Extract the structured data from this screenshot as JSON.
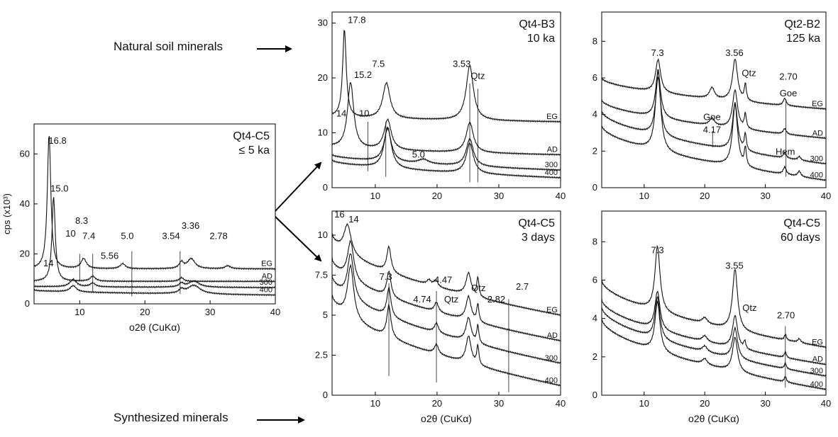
{
  "annotations": {
    "natural": "Natural soil minerals",
    "synthesized": "Synthesized minerals"
  },
  "chart_data": [
    {
      "type": "line",
      "id": "p0",
      "title": "Qt4-C5",
      "subtitle": "≤ 5 ka",
      "xlabel": "o2θ (CuKα)",
      "ylabel": "cps (x10³)",
      "xlim": [
        3,
        40
      ],
      "ylim": [
        0,
        72
      ],
      "xticks": [
        "10",
        "20",
        "30",
        "40"
      ],
      "yticks": [
        "0",
        "20",
        "40",
        "60"
      ],
      "series": [
        {
          "name": "EG",
          "base": 14,
          "end": 14,
          "peaks": [
            [
              5.3,
              54,
              0.32
            ],
            [
              10.6,
              4,
              0.5
            ],
            [
              16.6,
              2,
              0.5
            ],
            [
              25.6,
              2.5,
              0.4
            ],
            [
              27.1,
              4,
              0.7
            ],
            [
              32.7,
              1.2,
              0.5
            ]
          ]
        },
        {
          "name": "AD",
          "base": 9,
          "end": 9,
          "peaks": [
            [
              6.0,
              34,
              0.3
            ],
            [
              12.0,
              2,
              0.5
            ],
            [
              25.6,
              1.5,
              0.4
            ]
          ]
        },
        {
          "name": "300",
          "base": 7,
          "end": 6.5,
          "peaks": [
            [
              9.0,
              3,
              0.6
            ],
            [
              12.0,
              1.5,
              0.5
            ],
            [
              25.6,
              1.5,
              0.4
            ],
            [
              27.5,
              2.5,
              1.0
            ]
          ]
        },
        {
          "name": "400",
          "base": 5.5,
          "end": 3.5,
          "peaks": [
            [
              9.0,
              2.5,
              0.6
            ],
            [
              25.6,
              1.5,
              0.4
            ],
            [
              27.5,
              3.5,
              1.2
            ]
          ]
        }
      ],
      "peak_labels": [
        {
          "text": "16.8",
          "x": 6.6,
          "y": 64
        },
        {
          "text": "15.0",
          "x": 6.9,
          "y": 45
        },
        {
          "text": "14",
          "x": 5.2,
          "y": 15
        },
        {
          "text": "10",
          "x": 8.6,
          "y": 27
        },
        {
          "text": "8.3",
          "x": 10.3,
          "y": 32
        },
        {
          "text": "7.4",
          "x": 11.4,
          "y": 26
        },
        {
          "text": "5.56",
          "x": 14.6,
          "y": 18
        },
        {
          "text": "5.0",
          "x": 17.3,
          "y": 26
        },
        {
          "text": "3.54",
          "x": 24.0,
          "y": 26
        },
        {
          "text": "3.36",
          "x": 27.0,
          "y": 30
        },
        {
          "text": "2.78",
          "x": 31.3,
          "y": 26
        }
      ],
      "ref_lines": [
        {
          "x": 10.0,
          "y0": 9,
          "y1": 20
        },
        {
          "x": 12.0,
          "y0": 5,
          "y1": 20
        },
        {
          "x": 18.0,
          "y0": 3,
          "y1": 21
        },
        {
          "x": 25.4,
          "y0": 4,
          "y1": 21
        }
      ]
    },
    {
      "type": "line",
      "id": "p1",
      "title": "Qt4-B3",
      "subtitle": "10 ka",
      "xlabel": "",
      "ylabel": "",
      "xlim": [
        3,
        40
      ],
      "ylim": [
        0,
        32
      ],
      "xticks": [
        "10",
        "20",
        "30",
        "40"
      ],
      "yticks": [
        "0",
        "10",
        "20",
        "30"
      ],
      "series": [
        {
          "name": "EG",
          "base": 13,
          "end": 12,
          "peaks": [
            [
              5.0,
              16,
              0.35
            ],
            [
              11.8,
              6.5,
              0.7
            ],
            [
              25.3,
              10,
              0.7
            ]
          ]
        },
        {
          "name": "AD",
          "base": 7.5,
          "end": 6,
          "peaks": [
            [
              6.0,
              12,
              0.6
            ],
            [
              12.0,
              5.5,
              0.7
            ],
            [
              25.3,
              5.5,
              0.7
            ]
          ]
        },
        {
          "name": "300",
          "base": 6,
          "end": 3.2,
          "peaks": [
            [
              12.0,
              6,
              0.7
            ],
            [
              17.8,
              0.8,
              1.0
            ],
            [
              25.3,
              5,
              0.7
            ]
          ]
        },
        {
          "name": "400",
          "base": 5,
          "end": 1.8,
          "peaks": [
            [
              12.0,
              7.5,
              0.7
            ],
            [
              25.3,
              5.5,
              0.7
            ]
          ]
        }
      ],
      "peak_labels": [
        {
          "text": "17.8",
          "x": 7.0,
          "y": 30
        },
        {
          "text": "15.2",
          "x": 8.0,
          "y": 20
        },
        {
          "text": "7.5",
          "x": 10.5,
          "y": 22
        },
        {
          "text": "14",
          "x": 4.5,
          "y": 13
        },
        {
          "text": "10",
          "x": 8.2,
          "y": 13
        },
        {
          "text": "5.0",
          "x": 17.0,
          "y": 5.5
        },
        {
          "text": "3.53",
          "x": 24.0,
          "y": 22
        },
        {
          "text": "Qtz",
          "x": 26.6,
          "y": 19.8
        }
      ],
      "ref_lines": [
        {
          "x": 8.8,
          "y0": 3,
          "y1": 12
        },
        {
          "x": 11.7,
          "y0": 2,
          "y1": 12
        },
        {
          "x": 25.3,
          "y0": 1,
          "y1": 19
        },
        {
          "x": 26.6,
          "y0": 1,
          "y1": 18
        }
      ]
    },
    {
      "type": "line",
      "id": "p2",
      "title": "Qt2-B2",
      "subtitle": "125 ka",
      "xlabel": "",
      "ylabel": "",
      "xlim": [
        3,
        40
      ],
      "ylim": [
        0,
        9.6
      ],
      "xticks": [
        "10",
        "20",
        "30",
        "40"
      ],
      "yticks": [
        "0",
        "2",
        "4",
        "6",
        "8"
      ],
      "series": [
        {
          "name": "EG",
          "base": 6,
          "end": 4.3,
          "peaks": [
            [
              12.3,
              1.8,
              0.5
            ],
            [
              21.2,
              0.6,
              0.5
            ],
            [
              25.0,
              2.3,
              0.5
            ],
            [
              26.7,
              0.9,
              0.2
            ],
            [
              33.2,
              0.4,
              0.3
            ]
          ]
        },
        {
          "name": "AD",
          "base": 4.8,
          "end": 2.7,
          "peaks": [
            [
              12.3,
              2.5,
              0.5
            ],
            [
              21.2,
              0.4,
              0.5
            ],
            [
              25.0,
              2.1,
              0.5
            ],
            [
              26.7,
              0.8,
              0.2
            ],
            [
              33.2,
              0.3,
              0.3
            ]
          ]
        },
        {
          "name": "300",
          "base": 4.2,
          "end": 1.3,
          "peaks": [
            [
              12.3,
              3.2,
              0.5
            ],
            [
              25.0,
              2.6,
              0.5
            ],
            [
              26.7,
              0.9,
              0.2
            ],
            [
              33.2,
              0.3,
              0.3
            ],
            [
              35.6,
              0.2,
              0.3
            ]
          ]
        },
        {
          "name": "400",
          "base": 3.4,
          "end": 0.4,
          "peaks": [
            [
              12.3,
              4.5,
              0.5
            ],
            [
              25.0,
              3.4,
              0.5
            ],
            [
              26.7,
              1.0,
              0.2
            ],
            [
              33.2,
              0.4,
              0.3
            ],
            [
              35.6,
              0.3,
              0.3
            ]
          ]
        }
      ],
      "peak_labels": [
        {
          "text": "7.3",
          "x": 12.2,
          "y": 7.2
        },
        {
          "text": "3.56",
          "x": 24.9,
          "y": 7.2
        },
        {
          "text": "Qtz",
          "x": 27.3,
          "y": 6.1
        },
        {
          "text": "2.70",
          "x": 33.8,
          "y": 5.9
        },
        {
          "text": "Goe",
          "x": 33.8,
          "y": 5.0
        },
        {
          "text": "Goe",
          "x": 21.2,
          "y": 3.7
        },
        {
          "text": "4.17",
          "x": 21.2,
          "y": 3.0
        },
        {
          "text": "Hem",
          "x": 33.3,
          "y": 1.8
        }
      ],
      "ref_lines": [
        {
          "x": 21.3,
          "y0": 2.2,
          "y1": 3.1
        },
        {
          "x": 33.4,
          "y0": 0.6,
          "y1": 4.8
        }
      ]
    },
    {
      "type": "line",
      "id": "p3",
      "title": "Qt4-C5",
      "subtitle": "3 days",
      "xlabel": "o2θ (CuKα)",
      "ylabel": "",
      "xlim": [
        3,
        40
      ],
      "ylim": [
        0,
        11.5
      ],
      "xticks": [
        "10",
        "20",
        "30",
        "40"
      ],
      "yticks": [
        "0",
        "2.5",
        "5",
        "7.5",
        "10"
      ],
      "series": [
        {
          "name": "EG",
          "base": 10,
          "end": 5.0,
          "peaks": [
            [
              5.5,
              1.8,
              0.7
            ],
            [
              12.2,
              1.6,
              0.4
            ],
            [
              18.7,
              0.3,
              0.4
            ],
            [
              19.8,
              0.4,
              0.4
            ],
            [
              25.1,
              1.4,
              0.5
            ],
            [
              26.6,
              1.2,
              0.2
            ]
          ]
        },
        {
          "name": "AD",
          "base": 8.5,
          "end": 3.4,
          "peaks": [
            [
              6.0,
              2.4,
              0.6
            ],
            [
              12.2,
              1.6,
              0.4
            ],
            [
              19.9,
              0.6,
              0.4
            ],
            [
              25.1,
              1.5,
              0.5
            ],
            [
              26.6,
              1.1,
              0.2
            ]
          ]
        },
        {
          "name": "300",
          "base": 7.4,
          "end": 2.0,
          "peaks": [
            [
              6.0,
              2.8,
              0.6
            ],
            [
              12.2,
              1.8,
              0.4
            ],
            [
              19.9,
              0.6,
              0.4
            ],
            [
              25.1,
              1.5,
              0.5
            ],
            [
              26.6,
              1.1,
              0.2
            ]
          ]
        },
        {
          "name": "400",
          "base": 6.2,
          "end": 0.6,
          "peaks": [
            [
              6.0,
              3.3,
              0.6
            ],
            [
              12.2,
              2.0,
              0.4
            ],
            [
              19.9,
              0.6,
              0.4
            ],
            [
              25.1,
              1.7,
              0.5
            ],
            [
              26.6,
              1.2,
              0.2
            ]
          ]
        }
      ],
      "peak_labels": [
        {
          "text": "16",
          "x": 4.2,
          "y": 11.1
        },
        {
          "text": "14",
          "x": 6.5,
          "y": 10.8
        },
        {
          "text": "7.3",
          "x": 11.7,
          "y": 7.2
        },
        {
          "text": "4.74",
          "x": 17.6,
          "y": 5.8
        },
        {
          "text": "4.47",
          "x": 21.0,
          "y": 7.0
        },
        {
          "text": "Qtz",
          "x": 22.3,
          "y": 5.8
        },
        {
          "text": "Qtz",
          "x": 26.7,
          "y": 6.5
        },
        {
          "text": "2.82",
          "x": 29.6,
          "y": 5.8
        },
        {
          "text": "2.7",
          "x": 33.8,
          "y": 6.6
        }
      ],
      "ref_lines": [
        {
          "x": 12.2,
          "y0": 1.2,
          "y1": 7.0
        },
        {
          "x": 19.9,
          "y0": 0.8,
          "y1": 6.5
        },
        {
          "x": 31.6,
          "y0": 0.2,
          "y1": 6.0
        }
      ]
    },
    {
      "type": "line",
      "id": "p4",
      "title": "Qt4-C5",
      "subtitle": "60 days",
      "xlabel": "o2θ (CuKα)",
      "ylabel": "",
      "xlim": [
        3,
        40
      ],
      "ylim": [
        0,
        9.6
      ],
      "xticks": [
        "10",
        "20",
        "30",
        "40"
      ],
      "yticks": [
        "0",
        "2",
        "4",
        "6",
        "8"
      ],
      "series": [
        {
          "name": "EG",
          "base": 6,
          "end": 2.5,
          "peaks": [
            [
              12.2,
              3.4,
              0.5
            ],
            [
              20.0,
              0.3,
              0.5
            ],
            [
              25.0,
              3.2,
              0.5
            ],
            [
              33.3,
              0.3,
              0.2
            ],
            [
              35.6,
              0.2,
              0.3
            ]
          ]
        },
        {
          "name": "AD",
          "base": 5.0,
          "end": 1.6,
          "peaks": [
            [
              12.2,
              2.0,
              0.5
            ],
            [
              20.0,
              0.3,
              0.5
            ],
            [
              25.0,
              1.7,
              0.5
            ],
            [
              26.6,
              0.4,
              0.2
            ],
            [
              33.3,
              0.3,
              0.2
            ]
          ]
        },
        {
          "name": "300",
          "base": 4.6,
          "end": 1.0,
          "peaks": [
            [
              12.2,
              2.2,
              0.5
            ],
            [
              20.0,
              0.3,
              0.5
            ],
            [
              25.0,
              1.6,
              0.5
            ],
            [
              33.3,
              0.3,
              0.2
            ]
          ]
        },
        {
          "name": "400",
          "base": 4.0,
          "end": 0.3,
          "peaks": [
            [
              12.2,
              2.6,
              0.5
            ],
            [
              20.0,
              0.3,
              0.5
            ],
            [
              25.0,
              1.8,
              0.5
            ],
            [
              33.3,
              0.3,
              0.2
            ]
          ]
        }
      ],
      "peak_labels": [
        {
          "text": "7.3",
          "x": 12.2,
          "y": 7.4
        },
        {
          "text": "3.55",
          "x": 24.9,
          "y": 6.6
        },
        {
          "text": "Qtz",
          "x": 27.4,
          "y": 4.4
        },
        {
          "text": "2.70",
          "x": 33.4,
          "y": 4.0
        }
      ],
      "ref_lines": [
        {
          "x": 33.3,
          "y0": 0.4,
          "y1": 3.6
        }
      ]
    }
  ]
}
